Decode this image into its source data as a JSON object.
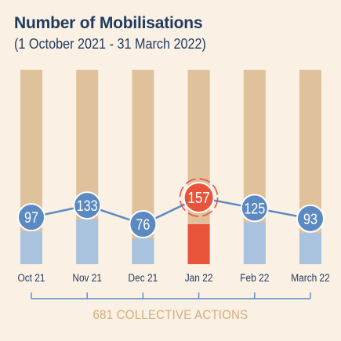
{
  "title": "Number of Mobilisations",
  "subtitle": "(1 October 2021 - 31 March 2022)",
  "footer": "681 COLLECTIVE ACTIONS",
  "colors": {
    "background": "#faf0e4",
    "bar_track": "#dfc29c",
    "bar_fill": "#a9c2de",
    "highlight_fill": "#e8543a",
    "marker": "#5b89c2",
    "highlight_marker": "#e8543a",
    "line": "#5b89c2",
    "month_label": "#1f3a5f",
    "footer": "#d2ac7c"
  },
  "chart_data": {
    "type": "bar",
    "title": "Number of Mobilisations",
    "subtitle": "(1 October 2021 - 31 March 2022)",
    "categories": [
      "Oct 21",
      "Nov 21",
      "Dec 21",
      "Jan 22",
      "Feb 22",
      "March 22"
    ],
    "series": [
      {
        "values": [
          97,
          133,
          76,
          157,
          125,
          93
        ]
      }
    ],
    "data_labels": [
      "97",
      "133",
      "76",
      "157",
      "125",
      "93"
    ],
    "highlight_index": 3,
    "total_label": "681 COLLECTIVE ACTIONS",
    "ylim": [
      0,
      157
    ],
    "grid": false,
    "legend": "none"
  }
}
